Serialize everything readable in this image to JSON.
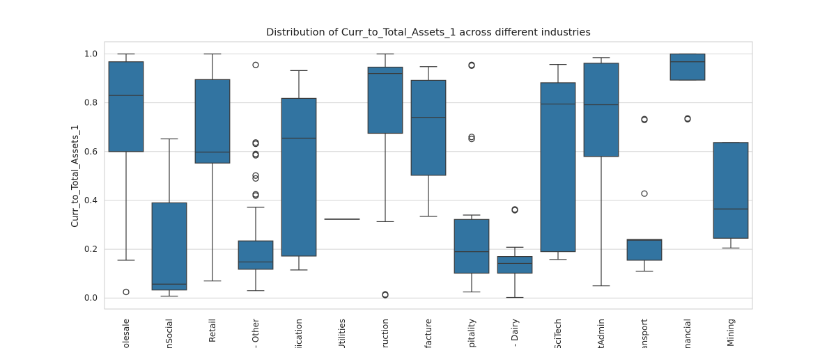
{
  "chart_data": {
    "type": "box",
    "title": "Distribution of Curr_to_Total_Assets_1 across different industries",
    "xlabel": "",
    "ylabel": "Curr_to_Total_Assets_1",
    "ylim": [
      -0.045,
      1.05
    ],
    "yticks": [
      "0.0",
      "0.2",
      "0.4",
      "0.6",
      "0.8",
      "1.0"
    ],
    "grid": true,
    "box_color": "#3274a1",
    "categories": [
      "olesale",
      "nSocial",
      "Retail",
      "- Other",
      "iication",
      "Utilities",
      "ruction",
      "facture",
      "spitality",
      "- Dairy",
      "SciTech",
      "tAdmin",
      "ansport",
      "nancial",
      "Mining"
    ],
    "boxes": [
      {
        "whislo": 0.155,
        "q1": 0.6,
        "med": 0.83,
        "q3": 0.968,
        "whishi": 1.0,
        "fliers": [
          0.025
        ]
      },
      {
        "whislo": 0.008,
        "q1": 0.033,
        "med": 0.057,
        "q3": 0.39,
        "whishi": 0.652,
        "fliers": []
      },
      {
        "whislo": 0.07,
        "q1": 0.553,
        "med": 0.598,
        "q3": 0.895,
        "whishi": 1.0,
        "fliers": []
      },
      {
        "whislo": 0.03,
        "q1": 0.118,
        "med": 0.148,
        "q3": 0.234,
        "whishi": 0.372,
        "fliers": [
          0.42,
          0.425,
          0.49,
          0.502,
          0.585,
          0.59,
          0.632,
          0.637,
          0.955
        ]
      },
      {
        "whislo": 0.115,
        "q1": 0.172,
        "med": 0.655,
        "q3": 0.818,
        "whishi": 0.932,
        "fliers": []
      },
      {
        "whislo": 0.324,
        "q1": 0.324,
        "med": 0.324,
        "q3": 0.324,
        "whishi": 0.324,
        "fliers": []
      },
      {
        "whislo": 0.313,
        "q1": 0.675,
        "med": 0.92,
        "q3": 0.946,
        "whishi": 1.0,
        "fliers": [
          0.012,
          0.015
        ]
      },
      {
        "whislo": 0.335,
        "q1": 0.503,
        "med": 0.74,
        "q3": 0.892,
        "whishi": 0.948,
        "fliers": []
      },
      {
        "whislo": 0.025,
        "q1": 0.102,
        "med": 0.19,
        "q3": 0.322,
        "whishi": 0.34,
        "fliers": [
          0.652,
          0.66,
          0.952,
          0.955
        ]
      },
      {
        "whislo": 0.002,
        "q1": 0.102,
        "med": 0.142,
        "q3": 0.17,
        "whishi": 0.208,
        "fliers": [
          0.36,
          0.363
        ]
      },
      {
        "whislo": 0.158,
        "q1": 0.19,
        "med": 0.795,
        "q3": 0.882,
        "whishi": 0.957,
        "fliers": []
      },
      {
        "whislo": 0.05,
        "q1": 0.58,
        "med": 0.792,
        "q3": 0.962,
        "whishi": 0.985,
        "fliers": []
      },
      {
        "whislo": 0.11,
        "q1": 0.155,
        "med": 0.237,
        "q3": 0.24,
        "whishi": 0.24,
        "fliers": [
          0.428,
          0.73,
          0.733
        ]
      },
      {
        "whislo": 0.893,
        "q1": 0.893,
        "med": 0.968,
        "q3": 1.0,
        "whishi": 1.0,
        "fliers": [
          0.733,
          0.736
        ]
      },
      {
        "whislo": 0.205,
        "q1": 0.245,
        "med": 0.365,
        "q3": 0.637,
        "whishi": 0.637,
        "fliers": []
      }
    ]
  }
}
